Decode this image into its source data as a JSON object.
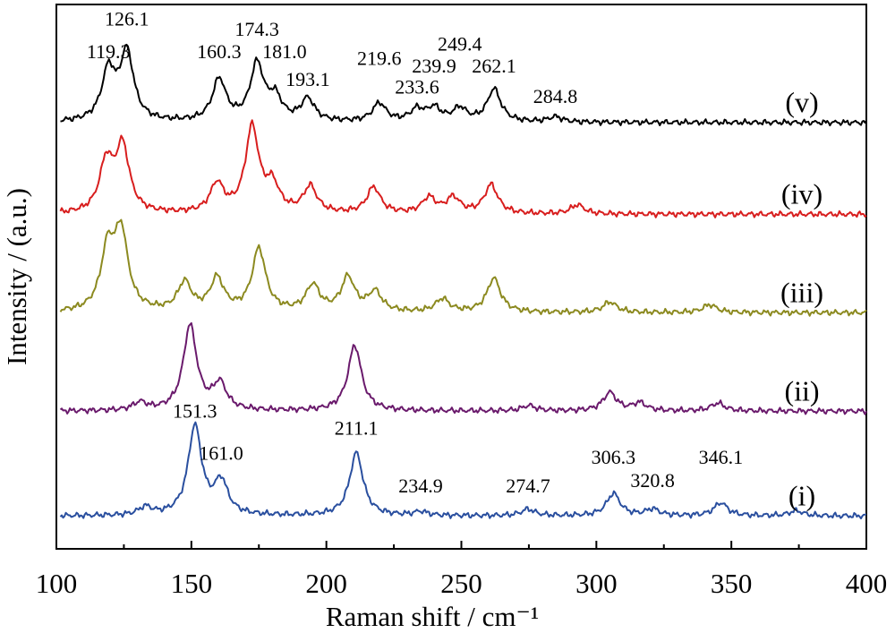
{
  "chart_data": {
    "type": "line",
    "xlabel": "Raman shift / cm⁻¹",
    "ylabel": "Intensity / (a.u.)",
    "xlim": [
      100,
      400
    ],
    "x_ticks": [
      "100",
      "150",
      "200",
      "250",
      "300",
      "350",
      "400"
    ],
    "y_ticks_shown": false,
    "grid": false,
    "legend": "series labels at right of each trace",
    "series": [
      {
        "name": "(v)",
        "color": "#000000",
        "baseline": 3.0,
        "peaks": [
          [
            119.3,
            0.38
          ],
          [
            126.1,
            0.52
          ],
          [
            160.3,
            0.32
          ],
          [
            174.3,
            0.43
          ],
          [
            181.0,
            0.17
          ],
          [
            193.1,
            0.17
          ],
          [
            219.6,
            0.14
          ],
          [
            233.6,
            0.09
          ],
          [
            239.9,
            0.1
          ],
          [
            249.4,
            0.1
          ],
          [
            262.1,
            0.25
          ],
          [
            284.8,
            0.04
          ]
        ],
        "labels": [
          {
            "text": "119.3",
            "x": 119.3,
            "y_off": 0.49
          },
          {
            "text": "126.1",
            "x": 126.1,
            "y_off": 0.74
          },
          {
            "text": "160.3",
            "x": 160.3,
            "y_off": 0.49
          },
          {
            "text": "174.3",
            "x": 174.3,
            "y_off": 0.66
          },
          {
            "text": "181.0",
            "x": 184.5,
            "y_off": 0.49
          },
          {
            "text": "193.1",
            "x": 193.1,
            "y_off": 0.28
          },
          {
            "text": "219.6",
            "x": 219.6,
            "y_off": 0.44
          },
          {
            "text": "233.6",
            "x": 233.6,
            "y_off": 0.22
          },
          {
            "text": "239.9",
            "x": 239.9,
            "y_off": 0.38
          },
          {
            "text": "249.4",
            "x": 249.4,
            "y_off": 0.55
          },
          {
            "text": "262.1",
            "x": 262.1,
            "y_off": 0.38
          },
          {
            "text": "284.8",
            "x": 284.8,
            "y_off": 0.15
          }
        ]
      },
      {
        "name": "(iv)",
        "color": "#d81e1e",
        "baseline": 2.3,
        "peaks": [
          [
            118.5,
            0.38
          ],
          [
            124.5,
            0.5
          ],
          [
            159.5,
            0.22
          ],
          [
            172.5,
            0.65
          ],
          [
            180.0,
            0.2
          ],
          [
            194.0,
            0.2
          ],
          [
            217.5,
            0.2
          ],
          [
            238.0,
            0.12
          ],
          [
            247.0,
            0.12
          ],
          [
            261.0,
            0.22
          ],
          [
            293.0,
            0.07
          ]
        ],
        "labels": []
      },
      {
        "name": "(iii)",
        "color": "#8c8a20",
        "baseline": 1.55,
        "peaks": [
          [
            119.0,
            0.45
          ],
          [
            124.0,
            0.58
          ],
          [
            147.5,
            0.22
          ],
          [
            159.5,
            0.25
          ],
          [
            175.0,
            0.48
          ],
          [
            195.0,
            0.2
          ],
          [
            208.0,
            0.26
          ],
          [
            218.0,
            0.15
          ],
          [
            243.0,
            0.1
          ],
          [
            262.0,
            0.26
          ],
          [
            305.0,
            0.08
          ],
          [
            342.0,
            0.06
          ]
        ],
        "labels": []
      },
      {
        "name": "(ii)",
        "color": "#6a1a6c",
        "baseline": 0.8,
        "peaks": [
          [
            131.0,
            0.06
          ],
          [
            149.5,
            0.65
          ],
          [
            160.5,
            0.2
          ],
          [
            210.5,
            0.5
          ],
          [
            275.0,
            0.04
          ],
          [
            305.0,
            0.14
          ],
          [
            316.0,
            0.06
          ],
          [
            345.0,
            0.06
          ]
        ],
        "labels": []
      },
      {
        "name": "(i)",
        "color": "#2a4f9f",
        "baseline": 0.0,
        "peaks": [
          [
            133.0,
            0.06
          ],
          [
            151.3,
            0.68
          ],
          [
            161.0,
            0.25
          ],
          [
            211.1,
            0.48
          ],
          [
            234.9,
            0.03
          ],
          [
            274.7,
            0.05
          ],
          [
            306.3,
            0.17
          ],
          [
            320.8,
            0.05
          ],
          [
            346.1,
            0.1
          ],
          [
            374.0,
            0.04
          ]
        ],
        "labels": [
          {
            "text": "151.3",
            "x": 151.3,
            "y_off": 0.75
          },
          {
            "text": "161.0",
            "x": 161.0,
            "y_off": 0.43
          },
          {
            "text": "211.1",
            "x": 211.1,
            "y_off": 0.62
          },
          {
            "text": "234.9",
            "x": 234.9,
            "y_off": 0.18
          },
          {
            "text": "274.7",
            "x": 274.7,
            "y_off": 0.18
          },
          {
            "text": "306.3",
            "x": 306.3,
            "y_off": 0.4
          },
          {
            "text": "320.8",
            "x": 320.8,
            "y_off": 0.22
          },
          {
            "text": "346.1",
            "x": 346.1,
            "y_off": 0.4
          }
        ]
      }
    ]
  }
}
